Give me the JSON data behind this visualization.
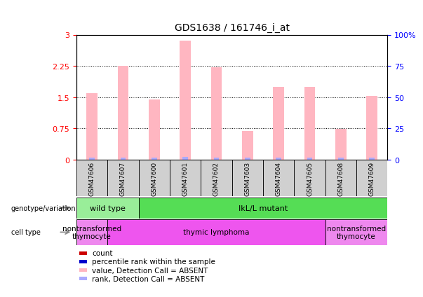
{
  "title": "GDS1638 / 161746_i_at",
  "samples": [
    "GSM47606",
    "GSM47607",
    "GSM47600",
    "GSM47601",
    "GSM47602",
    "GSM47603",
    "GSM47604",
    "GSM47605",
    "GSM47608",
    "GSM47609"
  ],
  "bar_heights": [
    1.6,
    2.25,
    1.45,
    2.85,
    2.22,
    0.68,
    1.75,
    1.75,
    0.73,
    1.52
  ],
  "small_bars": [
    0.05,
    0.05,
    0.05,
    0.07,
    0.05,
    0.05,
    0.05,
    0.05,
    0.05,
    0.05
  ],
  "ylim_left": [
    0,
    3
  ],
  "ylim_right": [
    0,
    100
  ],
  "yticks_left": [
    0,
    0.75,
    1.5,
    2.25,
    3
  ],
  "yticks_right": [
    0,
    25,
    50,
    75,
    100
  ],
  "ytick_labels_left": [
    "0",
    "0.75",
    "1.5",
    "2.25",
    "3"
  ],
  "ytick_labels_right": [
    "0",
    "25",
    "50",
    "75",
    "100%"
  ],
  "bar_color_absent": "#FFB6C1",
  "small_bar_color": "#AAAAFF",
  "genotype_spans": [
    {
      "label": "wild type",
      "start": 0,
      "end": 2,
      "color": "#99EE99"
    },
    {
      "label": "IkL/L mutant",
      "start": 2,
      "end": 10,
      "color": "#55DD55"
    }
  ],
  "celltype_spans": [
    {
      "label": "nontransformed\nthymocyte",
      "start": 0,
      "end": 1,
      "color": "#EE88EE"
    },
    {
      "label": "thymic lymphoma",
      "start": 1,
      "end": 8,
      "color": "#EE55EE"
    },
    {
      "label": "nontransformed\nthymocyte",
      "start": 8,
      "end": 10,
      "color": "#EE88EE"
    }
  ],
  "legend_colors": [
    "#CC0000",
    "#0000CC",
    "#FFB6C1",
    "#AAAAFF"
  ],
  "legend_labels": [
    "count",
    "percentile rank within the sample",
    "value, Detection Call = ABSENT",
    "rank, Detection Call = ABSENT"
  ]
}
